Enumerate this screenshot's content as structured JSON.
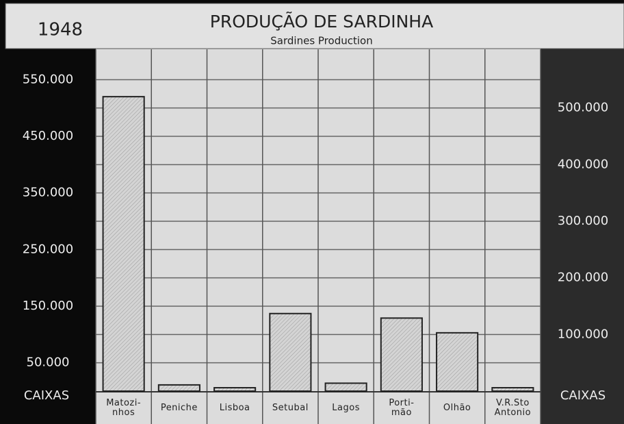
{
  "chart_data": {
    "type": "bar",
    "year": "1948",
    "title": "PRODUÇÃO DE SARDINHA",
    "subtitle": "Sardines Production",
    "y_label": "CAIXAS",
    "y2_label": "CAIXAS",
    "categories": [
      "Matozi-\nnhos",
      "Peniche",
      "Lisboa",
      "Setubal",
      "Lagos",
      "Porti-\nmão",
      "Olhão",
      "V.R.Sto\nAntonio"
    ],
    "values": [
      520000,
      11000,
      6000,
      137000,
      14000,
      129000,
      103000,
      6000
    ],
    "color": "#c8c8c8",
    "ylim": [
      0,
      600000
    ],
    "yticks": [
      {
        "value": 50000,
        "label": "50.000"
      },
      {
        "value": 150000,
        "label": "150.000"
      },
      {
        "value": 250000,
        "label": "250.000"
      },
      {
        "value": 350000,
        "label": "350.000"
      },
      {
        "value": 450000,
        "label": "450.000"
      },
      {
        "value": 550000,
        "label": "550.000"
      }
    ],
    "y2lim": [
      0,
      600000
    ],
    "y2ticks": [
      {
        "value": 100000,
        "label": "100.000"
      },
      {
        "value": 200000,
        "label": "200.000"
      },
      {
        "value": 300000,
        "label": "300.000"
      },
      {
        "value": 400000,
        "label": "400.000"
      },
      {
        "value": 500000,
        "label": "500.000"
      }
    ],
    "grid": true
  }
}
